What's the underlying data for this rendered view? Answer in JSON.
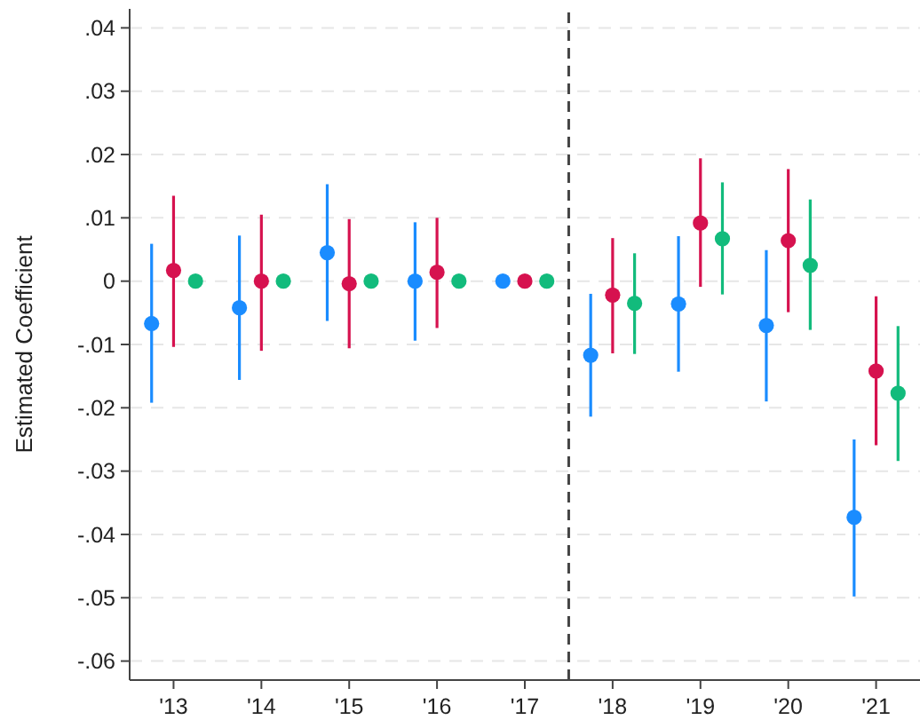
{
  "chart_data": {
    "type": "scatter",
    "ylabel": "Estimated Coefficient",
    "xlim": [
      2012.5,
      2021.5
    ],
    "xticks": [
      {
        "value": 2013,
        "label": "'13"
      },
      {
        "value": 2014,
        "label": "'14"
      },
      {
        "value": 2015,
        "label": "'15"
      },
      {
        "value": 2016,
        "label": "'16"
      },
      {
        "value": 2017,
        "label": "'17"
      },
      {
        "value": 2018,
        "label": "'18"
      },
      {
        "value": 2019,
        "label": "'19"
      },
      {
        "value": 2020,
        "label": "'20"
      },
      {
        "value": 2021,
        "label": "'21"
      }
    ],
    "ylim": [
      -0.063,
      0.043
    ],
    "yticks": [
      {
        "value": -0.06,
        "label": "-.06"
      },
      {
        "value": -0.05,
        "label": "-.05"
      },
      {
        "value": -0.04,
        "label": "-.04"
      },
      {
        "value": -0.03,
        "label": "-.03"
      },
      {
        "value": -0.02,
        "label": "-.02"
      },
      {
        "value": -0.01,
        "label": "-.01"
      },
      {
        "value": 0,
        "label": "0"
      },
      {
        "value": 0.01,
        "label": ".01"
      },
      {
        "value": 0.02,
        "label": ".02"
      },
      {
        "value": 0.03,
        "label": ".03"
      },
      {
        "value": 0.04,
        "label": ".04"
      }
    ],
    "grid": "y",
    "marker": "circle",
    "series": [
      {
        "color": "#1a8cff",
        "x": [
          2012.75,
          2013.75,
          2014.75,
          2015.75,
          2016.75,
          2017.75,
          2018.75,
          2019.75,
          2020.75
        ],
        "values": [
          -0.0067,
          -0.0042,
          0.0045,
          0,
          0,
          -0.0117,
          -0.0036,
          -0.007,
          -0.0373
        ],
        "errors": [
          [
            -0.0192,
            0.0059
          ],
          [
            -0.0156,
            0.0072
          ],
          [
            -0.0063,
            0.0153
          ],
          [
            -0.0094,
            0.0093
          ],
          null,
          [
            -0.0214,
            -0.002
          ],
          [
            -0.0143,
            0.0071
          ],
          [
            -0.019,
            0.0049
          ],
          [
            -0.0498,
            -0.025
          ]
        ]
      },
      {
        "color": "#d6124f",
        "x": [
          2013,
          2014,
          2015,
          2016,
          2017,
          2018,
          2019,
          2020,
          2021
        ],
        "values": [
          0.0017,
          0,
          -0.0004,
          0.0014,
          0,
          -0.0022,
          0.0092,
          0.0064,
          -0.0142
        ],
        "errors": [
          [
            -0.0104,
            0.0135
          ],
          [
            -0.011,
            0.0105
          ],
          [
            -0.0106,
            0.0098
          ],
          [
            -0.0074,
            0.01
          ],
          null,
          [
            -0.0114,
            0.0068
          ],
          [
            -0.0009,
            0.0194
          ],
          [
            -0.0049,
            0.0177
          ],
          [
            -0.0259,
            -0.0024
          ]
        ]
      },
      {
        "color": "#12bb7c",
        "x": [
          2013.25,
          2014.25,
          2015.25,
          2016.25,
          2017.25,
          2018.25,
          2019.25,
          2020.25,
          2021.25
        ],
        "values": [
          0,
          0,
          0,
          0,
          0,
          -0.0035,
          0.0067,
          0.0025,
          -0.0177
        ],
        "errors": [
          null,
          null,
          null,
          null,
          null,
          [
            -0.0115,
            0.0044
          ],
          [
            -0.0021,
            0.0156
          ],
          [
            -0.0077,
            0.0129
          ],
          [
            -0.0284,
            -0.0071
          ]
        ]
      }
    ],
    "ref_lines": [
      {
        "axis": "x",
        "value": 2017.5,
        "color": "#444444",
        "line_style": "dashed"
      }
    ]
  }
}
